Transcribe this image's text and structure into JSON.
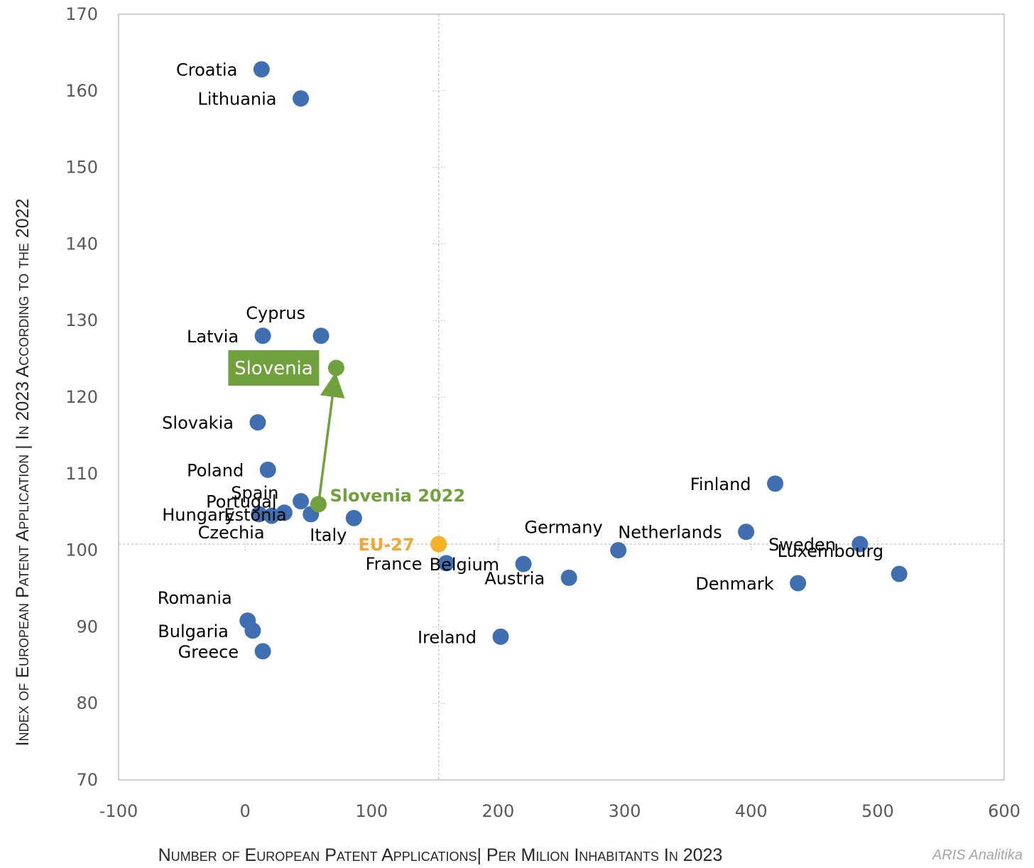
{
  "chart_data": {
    "type": "scatter",
    "xlabel": "Number of European Patent Applications| Per Milion Inhabitants In 2023",
    "ylabel": "Index of European Patent Application | In 2023 According to the 2022",
    "xlim": [
      -100,
      600
    ],
    "ylim": [
      70,
      170
    ],
    "x_ticks": [
      "-100",
      "0",
      "100",
      "200",
      "300",
      "400",
      "500",
      "600"
    ],
    "y_ticks": [
      "70",
      "80",
      "90",
      "100",
      "110",
      "120",
      "130",
      "140",
      "150",
      "160",
      "170"
    ],
    "reference_lines": {
      "x": 153,
      "y": 100.8
    },
    "grid": false,
    "points": [
      {
        "label": "Croatia",
        "x": 13,
        "y": 162.8,
        "group": "country",
        "label_anchor": "end",
        "label_pos": "left"
      },
      {
        "label": "Lithuania",
        "x": 44,
        "y": 159,
        "group": "country",
        "label_anchor": "end",
        "label_pos": "left"
      },
      {
        "label": "Latvia",
        "x": 14,
        "y": 128,
        "group": "country",
        "label_anchor": "end",
        "label_pos": "left"
      },
      {
        "label": "Cyprus",
        "x": 60,
        "y": 128,
        "group": "country",
        "label_anchor": "end",
        "label_pos": "above-left"
      },
      {
        "label": "Slovenia",
        "x": 72,
        "y": 123.8,
        "group": "highlight",
        "label_anchor": "box",
        "label_pos": "box-left"
      },
      {
        "label": "Slovakia",
        "x": 10,
        "y": 116.7,
        "group": "country",
        "label_anchor": "end",
        "label_pos": "left"
      },
      {
        "label": "Poland",
        "x": 18,
        "y": 110.5,
        "group": "country",
        "label_anchor": "end",
        "label_pos": "left"
      },
      {
        "label": "Portugal",
        "x": 44,
        "y": 106.4,
        "group": "country",
        "label_anchor": "end",
        "label_pos": "left"
      },
      {
        "label": "Spain",
        "x": 31,
        "y": 104.9,
        "group": "country",
        "label_anchor": "end",
        "label_pos": "above"
      },
      {
        "label": "Hungary",
        "x": 11,
        "y": 104.7,
        "group": "country",
        "label_anchor": "end",
        "label_pos": "left"
      },
      {
        "label": "Estonia",
        "x": 52,
        "y": 104.7,
        "group": "country",
        "label_anchor": "end",
        "label_pos": "left"
      },
      {
        "label": "Czechia",
        "x": 21,
        "y": 104.5,
        "group": "country",
        "label_anchor": "end",
        "label_pos": "below-left"
      },
      {
        "label": "Italy",
        "x": 86,
        "y": 104.2,
        "group": "country",
        "label_anchor": "end",
        "label_pos": "below-left"
      },
      {
        "label": "Slovenia 2022",
        "x": 58,
        "y": 106,
        "group": "highlight-previous",
        "label_anchor": "start",
        "label_pos": "right"
      },
      {
        "label": "EU-27",
        "x": 153,
        "y": 100.8,
        "group": "eu",
        "label_anchor": "end",
        "label_pos": "left"
      },
      {
        "label": "France",
        "x": 159,
        "y": 98.3,
        "group": "country",
        "label_anchor": "end",
        "label_pos": "left"
      },
      {
        "label": "Belgium",
        "x": 220,
        "y": 98.2,
        "group": "country",
        "label_anchor": "end",
        "label_pos": "left"
      },
      {
        "label": "Austria",
        "x": 256,
        "y": 96.4,
        "group": "country",
        "label_anchor": "end",
        "label_pos": "left"
      },
      {
        "label": "Germany",
        "x": 295,
        "y": 100,
        "group": "country",
        "label_anchor": "end",
        "label_pos": "above-left"
      },
      {
        "label": "Netherlands",
        "x": 396,
        "y": 102.4,
        "group": "country",
        "label_anchor": "end",
        "label_pos": "left"
      },
      {
        "label": "Finland",
        "x": 419,
        "y": 108.7,
        "group": "country",
        "label_anchor": "end",
        "label_pos": "left"
      },
      {
        "label": "Sweden",
        "x": 486,
        "y": 100.8,
        "group": "country",
        "label_anchor": "end",
        "label_pos": "left"
      },
      {
        "label": "Luxembourg",
        "x": 517,
        "y": 96.9,
        "group": "country",
        "label_anchor": "end",
        "label_pos": "above-left"
      },
      {
        "label": "Denmark",
        "x": 437,
        "y": 95.7,
        "group": "country",
        "label_anchor": "end",
        "label_pos": "left"
      },
      {
        "label": "Ireland",
        "x": 202,
        "y": 88.7,
        "group": "country",
        "label_anchor": "end",
        "label_pos": "left"
      },
      {
        "label": "Romania",
        "x": 2,
        "y": 90.8,
        "group": "country",
        "label_anchor": "end",
        "label_pos": "above-left"
      },
      {
        "label": "Bulgaria",
        "x": 6,
        "y": 89.5,
        "group": "country",
        "label_anchor": "end",
        "label_pos": "left"
      },
      {
        "label": "Greece",
        "x": 14,
        "y": 86.8,
        "group": "country",
        "label_anchor": "end",
        "label_pos": "left"
      }
    ],
    "arrow": {
      "from": "Slovenia 2022",
      "to": "Slovenia"
    },
    "colors": {
      "country": "#3f6fb1",
      "highlight": "#70a13c",
      "eu": "#f5b128",
      "eu_label": "#f0a830",
      "highlight_box_text": "#ffffff"
    }
  },
  "credit": "ARIS Analitika"
}
